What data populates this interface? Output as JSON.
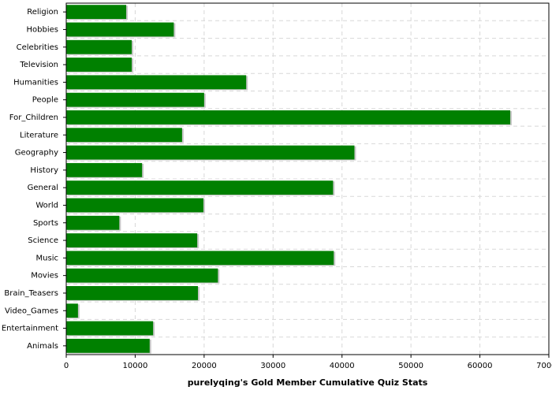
{
  "chart_data": {
    "type": "hbar",
    "xlabel": "purelyqing's Gold Member Cumulative Quiz Stats",
    "categories": [
      "Religion",
      "Hobbies",
      "Celebrities",
      "Television",
      "Humanities",
      "People",
      "For_Children",
      "Literature",
      "Geography",
      "History",
      "General",
      "World",
      "Sports",
      "Science",
      "Music",
      "Movies",
      "Brain_Teasers",
      "Video_Games",
      "Entertainment",
      "Animals"
    ],
    "values": [
      8700,
      15600,
      9500,
      9500,
      26100,
      20000,
      64400,
      16800,
      41800,
      11000,
      38700,
      19900,
      7700,
      19000,
      38800,
      22000,
      19100,
      1700,
      12600,
      12100
    ],
    "color": "#008000",
    "xlim": [
      0,
      70000
    ],
    "xticks": [
      0,
      10000,
      20000,
      30000,
      40000,
      50000,
      60000,
      70000
    ],
    "grid": true
  }
}
